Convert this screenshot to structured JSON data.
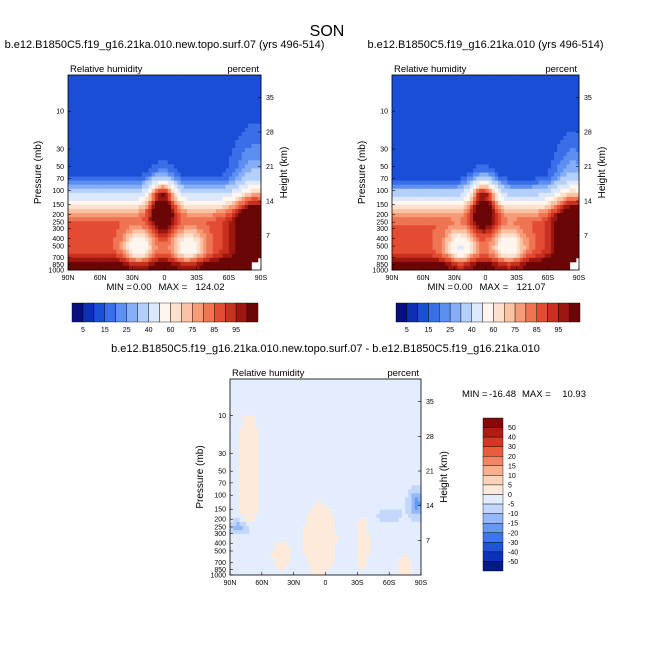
{
  "figure_title": "SON",
  "palettes": {
    "rh": [
      "#08107e",
      "#0c2fb4",
      "#1b4ed6",
      "#3a6ee8",
      "#5d8ff2",
      "#86aef7",
      "#b3cffa",
      "#dbe8fd",
      "#fff6ef",
      "#fde0cd",
      "#fbc3a5",
      "#f69b78",
      "#ef7452",
      "#e34c33",
      "#c8301f",
      "#9c1710",
      "#6b0606"
    ],
    "diff": [
      "#001a8a",
      "#0b33b8",
      "#2054d8",
      "#3f75eb",
      "#6797f5",
      "#95b8fa",
      "#c3d7fd",
      "#e3edfe",
      "#fdeadb",
      "#fcd2b8",
      "#f9b08d",
      "#f38564",
      "#e85c3e",
      "#d23826",
      "#b01b13",
      "#860808"
    ]
  },
  "chart_data": [
    {
      "type": "heatmap",
      "title": "b.e12.B1850C5.f19_g16.21ka.010.new.topo.surf.07 (yrs 496-514)",
      "left_label": "Relative humidity",
      "right_label": "percent",
      "ylabel": "Pressure (mb)",
      "ylabel_right": "Height (km)",
      "x_ticks": [
        "90N",
        "60N",
        "30N",
        "0",
        "30S",
        "60S",
        "90S"
      ],
      "y_ticks": [
        "10",
        "30",
        "50",
        "70",
        "100",
        "150",
        "200",
        "250",
        "300",
        "400",
        "500",
        "700",
        "850",
        "1000"
      ],
      "y_ticks_right": [
        "35",
        "28",
        "21",
        "14",
        "7"
      ],
      "stats": {
        "min_label": "MIN =",
        "min": "0.00",
        "max_label": "MAX =",
        "max": "124.02"
      },
      "colorbar_labels": [
        "5",
        "15",
        "25",
        "40",
        "60",
        "75",
        "85",
        "95"
      ]
    },
    {
      "type": "heatmap",
      "title": "b.e12.B1850C5.f19_g16.21ka.010 (yrs 496-514)",
      "left_label": "Relative humidity",
      "right_label": "percent",
      "ylabel": "Pressure (mb)",
      "ylabel_right": "Height (km)",
      "x_ticks": [
        "90N",
        "60N",
        "30N",
        "0",
        "30S",
        "60S",
        "90S"
      ],
      "y_ticks": [
        "10",
        "30",
        "50",
        "70",
        "100",
        "150",
        "200",
        "250",
        "300",
        "400",
        "500",
        "700",
        "850",
        "1000"
      ],
      "y_ticks_right": [
        "35",
        "28",
        "21",
        "14",
        "7"
      ],
      "stats": {
        "min_label": "MIN =",
        "min": "0.00",
        "max_label": "MAX =",
        "max": "121.07"
      },
      "colorbar_labels": [
        "5",
        "15",
        "25",
        "40",
        "60",
        "75",
        "85",
        "95"
      ]
    },
    {
      "type": "heatmap",
      "title": "b.e12.B1850C5.f19_g16.21ka.010.new.topo.surf.07 - b.e12.B1850C5.f19_g16.21ka.010",
      "left_label": "Relative humidity",
      "right_label": "percent",
      "ylabel": "Pressure (mb)",
      "ylabel_right": "Height (km)",
      "x_ticks": [
        "90N",
        "60N",
        "30N",
        "0",
        "30S",
        "60S",
        "90S"
      ],
      "y_ticks": [
        "10",
        "30",
        "50",
        "70",
        "100",
        "150",
        "200",
        "250",
        "300",
        "400",
        "500",
        "700",
        "850",
        "1000"
      ],
      "y_ticks_right": [
        "35",
        "28",
        "21",
        "14",
        "7"
      ],
      "stats": {
        "min_label": "MIN =",
        "min": "-16.48",
        "max_label": "MAX =",
        "max": "10.93"
      },
      "colorbar_labels": [
        "50",
        "40",
        "30",
        "20",
        "15",
        "10",
        "5",
        "0",
        "-5",
        "-10",
        "-15",
        "-20",
        "-30",
        "-40",
        "-50"
      ]
    }
  ]
}
